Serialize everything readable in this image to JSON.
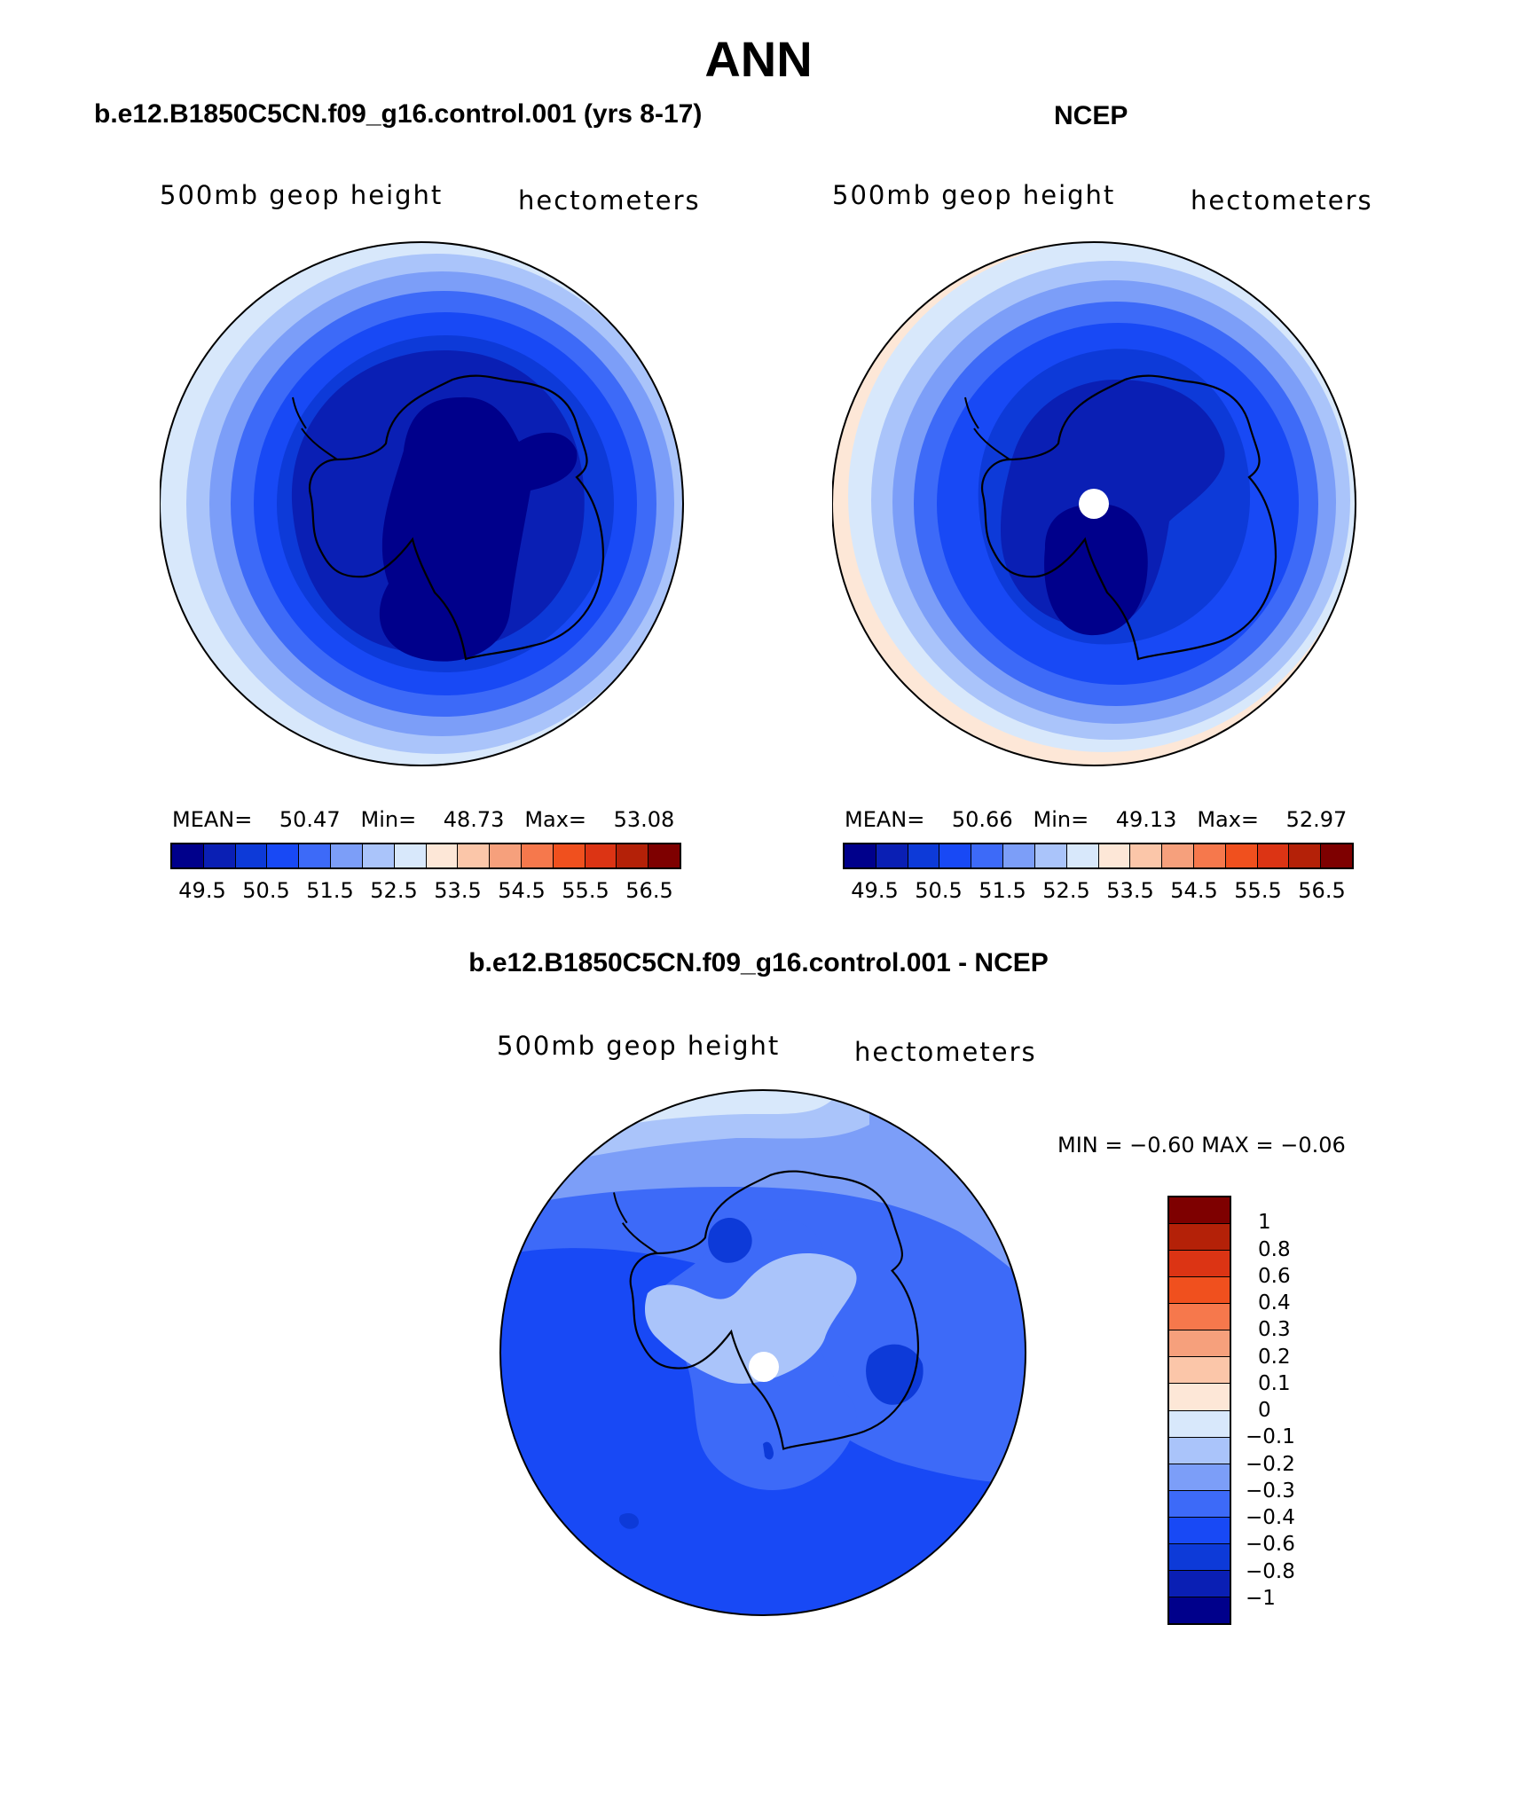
{
  "title": "ANN",
  "panels": {
    "model": {
      "title": "b.e12.B1850C5CN.f09_g16.control.001 (yrs 8-17)",
      "var_label": "500mb  geop  height",
      "units_label": "hectometers",
      "stats": {
        "mean_label": "MEAN=",
        "mean": "50.47",
        "min_label": "Min=",
        "min": "48.73",
        "max_label": "Max=",
        "max": "53.08"
      }
    },
    "obs": {
      "title": "NCEP",
      "var_label": "500mb  geop  height",
      "units_label": "hectometers",
      "stats": {
        "mean_label": "MEAN=",
        "mean": "50.66",
        "min_label": "Min=",
        "min": "49.13",
        "max_label": "Max=",
        "max": "52.97"
      }
    },
    "diff": {
      "title": "b.e12.B1850C5CN.f09_g16.control.001 - NCEP",
      "var_label": "500mb  geop  height",
      "units_label": "hectometers",
      "minmax": "MIN =   −0.60  MAX =   −0.06"
    }
  },
  "colorbar_abs": {
    "colors": [
      "#00008b",
      "#0a1fb4",
      "#0d3ad8",
      "#1849f5",
      "#3d6af8",
      "#7c9ef8",
      "#aac4fa",
      "#d8e8fb",
      "#fde7d7",
      "#fbc6a9",
      "#f6a07c",
      "#f6784c",
      "#f0501e",
      "#dc3414",
      "#b42108",
      "#7e0000"
    ],
    "tick_labels": [
      "49.5",
      "50.5",
      "51.5",
      "52.5",
      "53.5",
      "54.5",
      "55.5",
      "56.5"
    ]
  },
  "colorbar_diff": {
    "colors": [
      "#00008b",
      "#0a1fb4",
      "#0d3ad8",
      "#1849f5",
      "#3d6af8",
      "#7c9ef8",
      "#aac4fa",
      "#d8e8fb",
      "#fde7d7",
      "#fbc6a9",
      "#f6a07c",
      "#f6784c",
      "#f0501e",
      "#dc3414",
      "#b42108",
      "#7e0000"
    ],
    "tick_labels": [
      "−1",
      "−0.8",
      "−0.6",
      "−0.4",
      "−0.3",
      "−0.2",
      "−0.1",
      "0",
      "0.1",
      "0.2",
      "0.3",
      "0.4",
      "0.6",
      "0.8",
      "1"
    ]
  },
  "map_colors": {
    "fill_outer": "#d8e8fb",
    "ring_colors": [
      "#aac4fa",
      "#7c9ef8",
      "#3d6af8",
      "#1849f5",
      "#0d3ad8",
      "#0a1fb4"
    ],
    "core": "#00008b",
    "obs_outer": "#fde7d7",
    "diff_base": "#1849f5",
    "diff_mid": "#3d6af8",
    "diff_light": "#7c9ef8",
    "diff_lighter": "#aac4fa",
    "diff_lightest": "#d8e8fb",
    "diff_dark": "#0d3ad8"
  }
}
